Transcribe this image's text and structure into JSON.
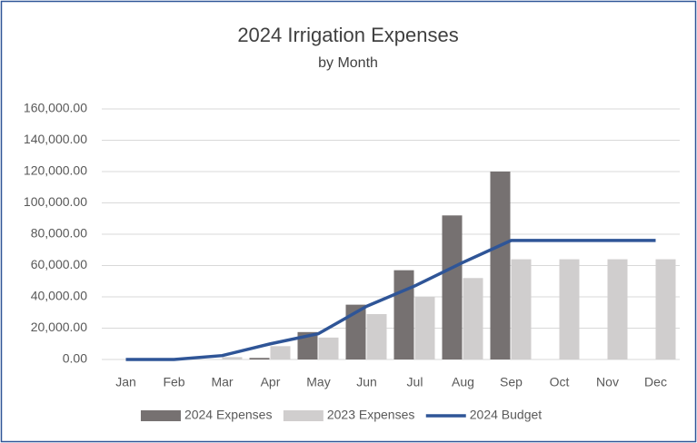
{
  "chart_data": {
    "type": "bar",
    "title": "2024 Irrigation Expenses",
    "subtitle": "by Month",
    "categories": [
      "Jan",
      "Feb",
      "Mar",
      "Apr",
      "May",
      "Jun",
      "Jul",
      "Aug",
      "Sep",
      "Oct",
      "Nov",
      "Dec"
    ],
    "series": [
      {
        "name": "2024 Expenses",
        "type": "bar",
        "color": "#767171",
        "values": [
          0,
          0,
          0,
          1000,
          17500,
          35000,
          57000,
          92000,
          120000,
          null,
          null,
          null
        ]
      },
      {
        "name": "2023 Expenses",
        "type": "bar",
        "color": "#d0cece",
        "values": [
          0,
          0,
          1500,
          8500,
          14000,
          29000,
          40000,
          52000,
          64000,
          64000,
          64000,
          64000
        ]
      },
      {
        "name": "2024 Budget",
        "type": "line",
        "color": "#2f5597",
        "values": [
          0,
          0,
          2500,
          10000,
          16500,
          34000,
          47000,
          62000,
          76000,
          76000,
          76000,
          76000
        ]
      }
    ],
    "ylim": [
      0,
      160000
    ],
    "yticks": [
      {
        "value": 0,
        "label": "0.00"
      },
      {
        "value": 20000,
        "label": "20,000.00"
      },
      {
        "value": 40000,
        "label": "40,000.00"
      },
      {
        "value": 60000,
        "label": "60,000.00"
      },
      {
        "value": 80000,
        "label": "80,000.00"
      },
      {
        "value": 100000,
        "label": "100,000.00"
      },
      {
        "value": 120000,
        "label": "120,000.00"
      },
      {
        "value": 140000,
        "label": "140,000.00"
      },
      {
        "value": 160000,
        "label": "160,000.00"
      }
    ],
    "grid": true,
    "legend": "bottom"
  }
}
